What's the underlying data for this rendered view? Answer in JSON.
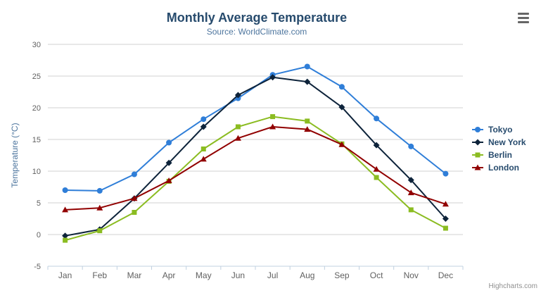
{
  "chart": {
    "title": "Monthly Average Temperature",
    "subtitle": "Source: WorldClimate.com",
    "credits": "Highcharts.com",
    "menu_icon": "hamburger-menu"
  },
  "chart_data": {
    "type": "line",
    "title": "Monthly Average Temperature",
    "subtitle": "Source: WorldClimate.com",
    "categories": [
      "Jan",
      "Feb",
      "Mar",
      "Apr",
      "May",
      "Jun",
      "Jul",
      "Aug",
      "Sep",
      "Oct",
      "Nov",
      "Dec"
    ],
    "series": [
      {
        "name": "Tokyo",
        "color": "#2f7ed8",
        "marker": "circle",
        "values": [
          7.0,
          6.9,
          9.5,
          14.5,
          18.2,
          21.5,
          25.2,
          26.5,
          23.3,
          18.3,
          13.9,
          9.6
        ]
      },
      {
        "name": "New York",
        "color": "#0d233a",
        "marker": "diamond",
        "values": [
          -0.2,
          0.8,
          5.7,
          11.3,
          17.0,
          22.0,
          24.8,
          24.1,
          20.1,
          14.1,
          8.6,
          2.5
        ]
      },
      {
        "name": "Berlin",
        "color": "#8bbc21",
        "marker": "square",
        "values": [
          -0.9,
          0.6,
          3.5,
          8.4,
          13.5,
          17.0,
          18.6,
          17.9,
          14.3,
          9.0,
          3.9,
          1.0
        ]
      },
      {
        "name": "London",
        "color": "#910000",
        "marker": "triangle",
        "values": [
          3.9,
          4.2,
          5.7,
          8.5,
          11.9,
          15.2,
          17.0,
          16.6,
          14.2,
          10.3,
          6.6,
          4.8
        ]
      }
    ],
    "xlabel": "",
    "ylabel": "Temperature (°C)",
    "ylim": [
      -5,
      30
    ],
    "ytick_step": 5,
    "yticks": [
      -5,
      0,
      5,
      10,
      15,
      20,
      25,
      30
    ],
    "grid": true,
    "legend_position": "right"
  },
  "colors": {
    "title": "#274b6d",
    "subtitle": "#4d759e",
    "axis_title": "#4d759e",
    "tick_label": "#606060",
    "grid_line": "#d0d0d0",
    "axis_line": "#c0d0e0",
    "legend_text": "#274b6d",
    "credits": "#909090",
    "menu_icon": "#666666",
    "background": "#ffffff"
  }
}
